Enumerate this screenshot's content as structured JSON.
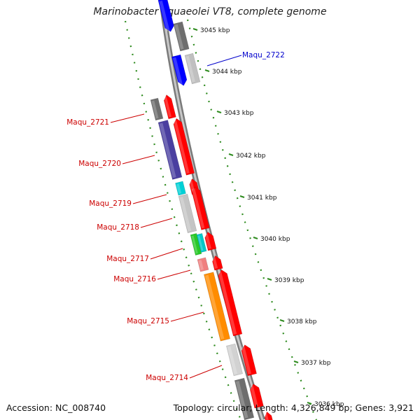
{
  "title": "Marinobacter aquaeolei VT8, complete genome",
  "footer": {
    "accession": "Accession: NC_008740",
    "summary": "Topology: circular; Length: 4,326,849 bp; Genes: 3,921"
  },
  "colors": {
    "backbone": "#8a8a8a",
    "ticks": "#2e8b1e",
    "selected_label": "#0000cc",
    "gene_label": "#cc0000",
    "forward_gene": "#ff0000",
    "reverse_gene": "#0000ff"
  },
  "scale_ticks": [
    "3045 kbp",
    "3044 kbp",
    "3043 kbp",
    "3042 kbp",
    "3041 kbp",
    "3040 kbp",
    "3039 kbp",
    "3038 kbp",
    "3037 kbp",
    "3036 kbp"
  ],
  "gene_labels": [
    {
      "name": "Maqu_2722",
      "selected": true
    },
    {
      "name": "Maqu_2721",
      "selected": false
    },
    {
      "name": "Maqu_2720",
      "selected": false
    },
    {
      "name": "Maqu_2719",
      "selected": false
    },
    {
      "name": "Maqu_2718",
      "selected": false
    },
    {
      "name": "Maqu_2717",
      "selected": false
    },
    {
      "name": "Maqu_2716",
      "selected": false
    },
    {
      "name": "Maqu_2715",
      "selected": false
    },
    {
      "name": "Maqu_2714",
      "selected": false
    }
  ]
}
